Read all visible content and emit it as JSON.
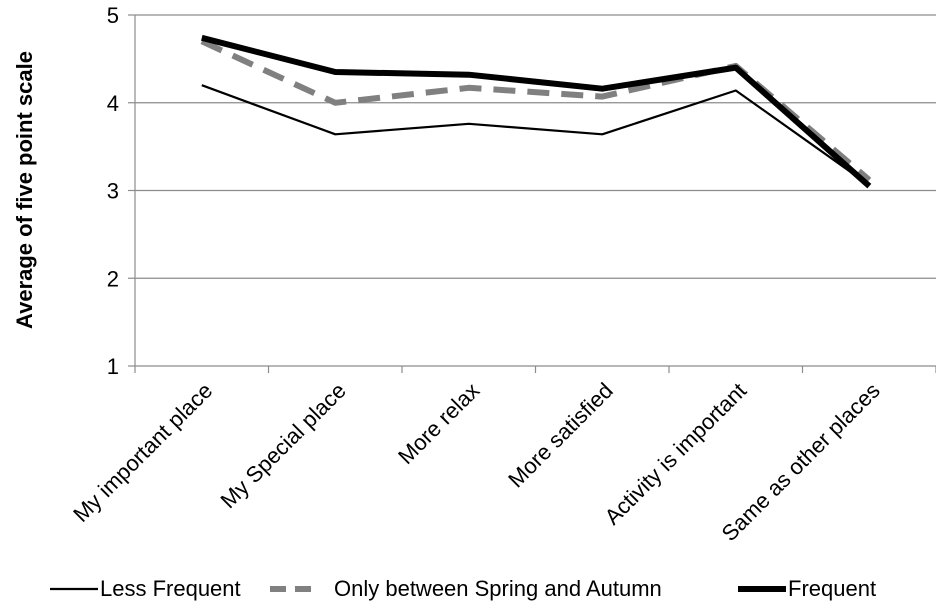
{
  "chart_data": {
    "type": "line",
    "categories": [
      "My important place",
      "My Special place",
      "More relax",
      "More satisfied",
      "Activity is important",
      "Same as other places"
    ],
    "series": [
      {
        "name": "Less Frequent",
        "values": [
          4.2,
          3.64,
          3.76,
          3.64,
          4.14,
          3.06
        ],
        "color": "#000000",
        "style": "solid-thin"
      },
      {
        "name": "Only between Spring and Autumn",
        "values": [
          4.7,
          4.0,
          4.17,
          4.07,
          4.42,
          3.12
        ],
        "color": "#808080",
        "style": "dashed"
      },
      {
        "name": "Frequent",
        "values": [
          4.74,
          4.35,
          4.32,
          4.16,
          4.4,
          3.05
        ],
        "color": "#000000",
        "style": "solid-thick"
      }
    ],
    "ylabel": "Average of five point scale",
    "xlabel": "",
    "title": "",
    "ylim": [
      1,
      5
    ],
    "yticks": [
      1,
      2,
      3,
      4,
      5
    ],
    "grid": "horizontal",
    "legend": "bottom"
  }
}
